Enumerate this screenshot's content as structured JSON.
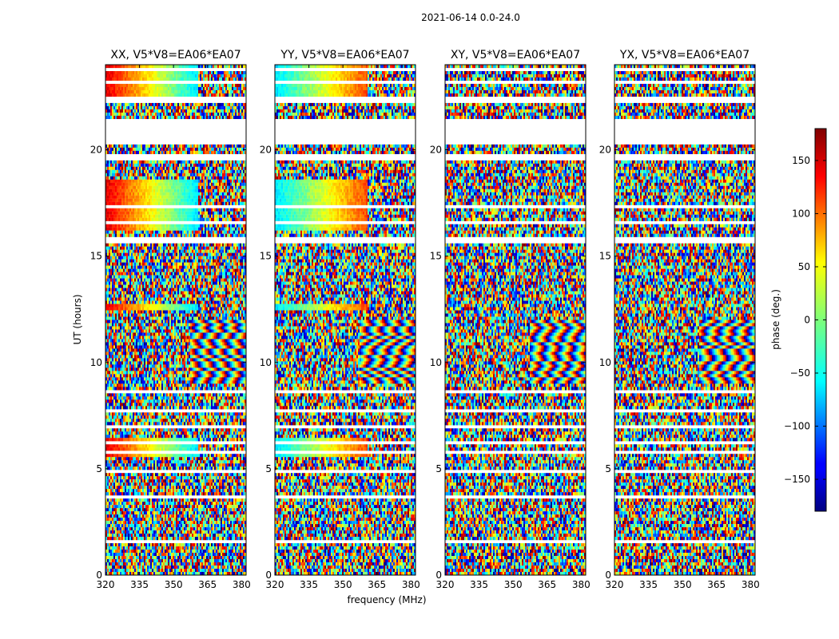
{
  "chart_data": {
    "type": "heatmap",
    "title": "2021-06-14 0.0-24.0",
    "xlabel": "frequency (MHz)",
    "ylabel": "UT (hours)",
    "xlim": [
      320,
      382
    ],
    "ylim": [
      0,
      24
    ],
    "xticks": [
      320,
      335,
      350,
      365,
      380
    ],
    "yticks": [
      0,
      5,
      10,
      15,
      20
    ],
    "panels": [
      {
        "name": "XX",
        "title": "XX, V5*V8=EA06*EA07",
        "coherent": true
      },
      {
        "name": "YY",
        "title": "YY, V5*V8=EA06*EA07",
        "coherent": true
      },
      {
        "name": "XY",
        "title": "XY, V5*V8=EA06*EA07",
        "coherent": false
      },
      {
        "name": "YX",
        "title": "YX, V5*V8=EA06*EA07",
        "coherent": false
      }
    ],
    "colorbar": {
      "label": "phase (deg.)",
      "range": [
        -180,
        180
      ],
      "ticks": [
        -150,
        -100,
        -50,
        0,
        50,
        100,
        150
      ],
      "colormap": "jet"
    },
    "blank_intervals_hours": [
      [
        23.65,
        23.8
      ],
      [
        23.05,
        23.2
      ],
      [
        22.25,
        22.45
      ],
      [
        20.2,
        21.4
      ],
      [
        19.5,
        19.85
      ],
      [
        17.3,
        17.45
      ],
      [
        16.55,
        16.7
      ],
      [
        15.55,
        15.85
      ],
      [
        8.55,
        8.7
      ],
      [
        7.65,
        7.75
      ],
      [
        6.95,
        7.05
      ],
      [
        6.1,
        6.25
      ],
      [
        5.75,
        5.85
      ],
      [
        4.8,
        4.9
      ],
      [
        4.45,
        4.55
      ],
      [
        3.6,
        3.75
      ],
      [
        1.55,
        1.7
      ]
    ]
  }
}
